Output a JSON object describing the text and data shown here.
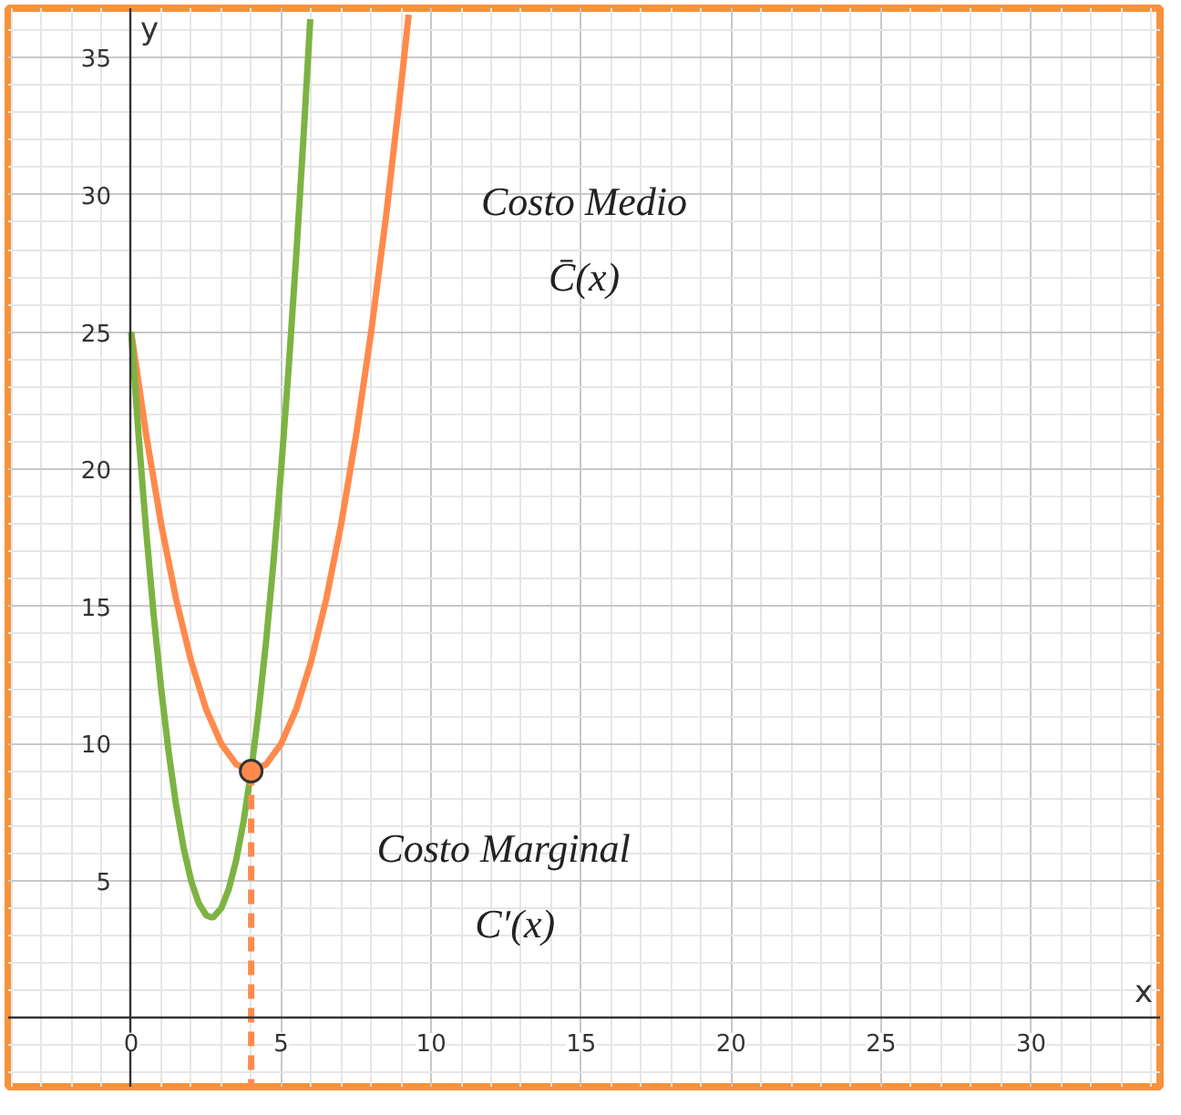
{
  "chart_data": {
    "type": "line",
    "xlabel": "x",
    "ylabel": "y",
    "xlim": [
      -4.1,
      34.3
    ],
    "ylim": [
      -2.5,
      36.8
    ],
    "xticks": [
      0,
      5,
      10,
      15,
      20,
      25,
      30
    ],
    "yticks": [
      5,
      10,
      15,
      20,
      25,
      30,
      35
    ],
    "grid": true,
    "line_style": "solid",
    "marker": "none",
    "series": [
      {
        "color": "#ff8a4c",
        "x": [
          0,
          0.5,
          1,
          1.5,
          2,
          2.5,
          3,
          3.5,
          4,
          4.5,
          5,
          5.5,
          6,
          6.5,
          7,
          7.5,
          8,
          8.5,
          9,
          9.25
        ],
        "values": [
          25,
          21.25,
          18,
          15.25,
          13,
          11.25,
          10,
          9.25,
          9,
          9.25,
          10,
          11.25,
          13,
          15.25,
          18,
          21.25,
          25,
          29.25,
          34,
          36.56
        ]
      },
      {
        "color": "#7cb342",
        "x": [
          0,
          0.25,
          0.5,
          0.75,
          1,
          1.25,
          1.5,
          1.75,
          2,
          2.25,
          2.5,
          2.67,
          2.75,
          3,
          3.25,
          3.5,
          3.75,
          4,
          4.25,
          4.5,
          4.75,
          5,
          5.25,
          5.5,
          5.75,
          5.97
        ],
        "values": [
          25,
          21.19,
          17.75,
          14.69,
          12,
          9.69,
          7.75,
          6.19,
          5,
          4.19,
          3.75,
          3.67,
          3.69,
          4,
          4.69,
          5.75,
          7.19,
          9,
          11.19,
          13.75,
          16.69,
          20,
          23.69,
          27.75,
          32.19,
          36.4
        ]
      },
      {
        "color": "#ff8a4c",
        "line_style": "dashed",
        "x": [
          4,
          4
        ],
        "values": [
          9,
          -2.5
        ]
      },
      {
        "type": "scatter",
        "marker": "circle",
        "color": "#ff8a4c",
        "x": [
          4
        ],
        "values": [
          9
        ]
      }
    ],
    "annotations": [
      "Costo Medio",
      "C̄(x)",
      "Costo Marginal",
      "C′(x)"
    ]
  }
}
